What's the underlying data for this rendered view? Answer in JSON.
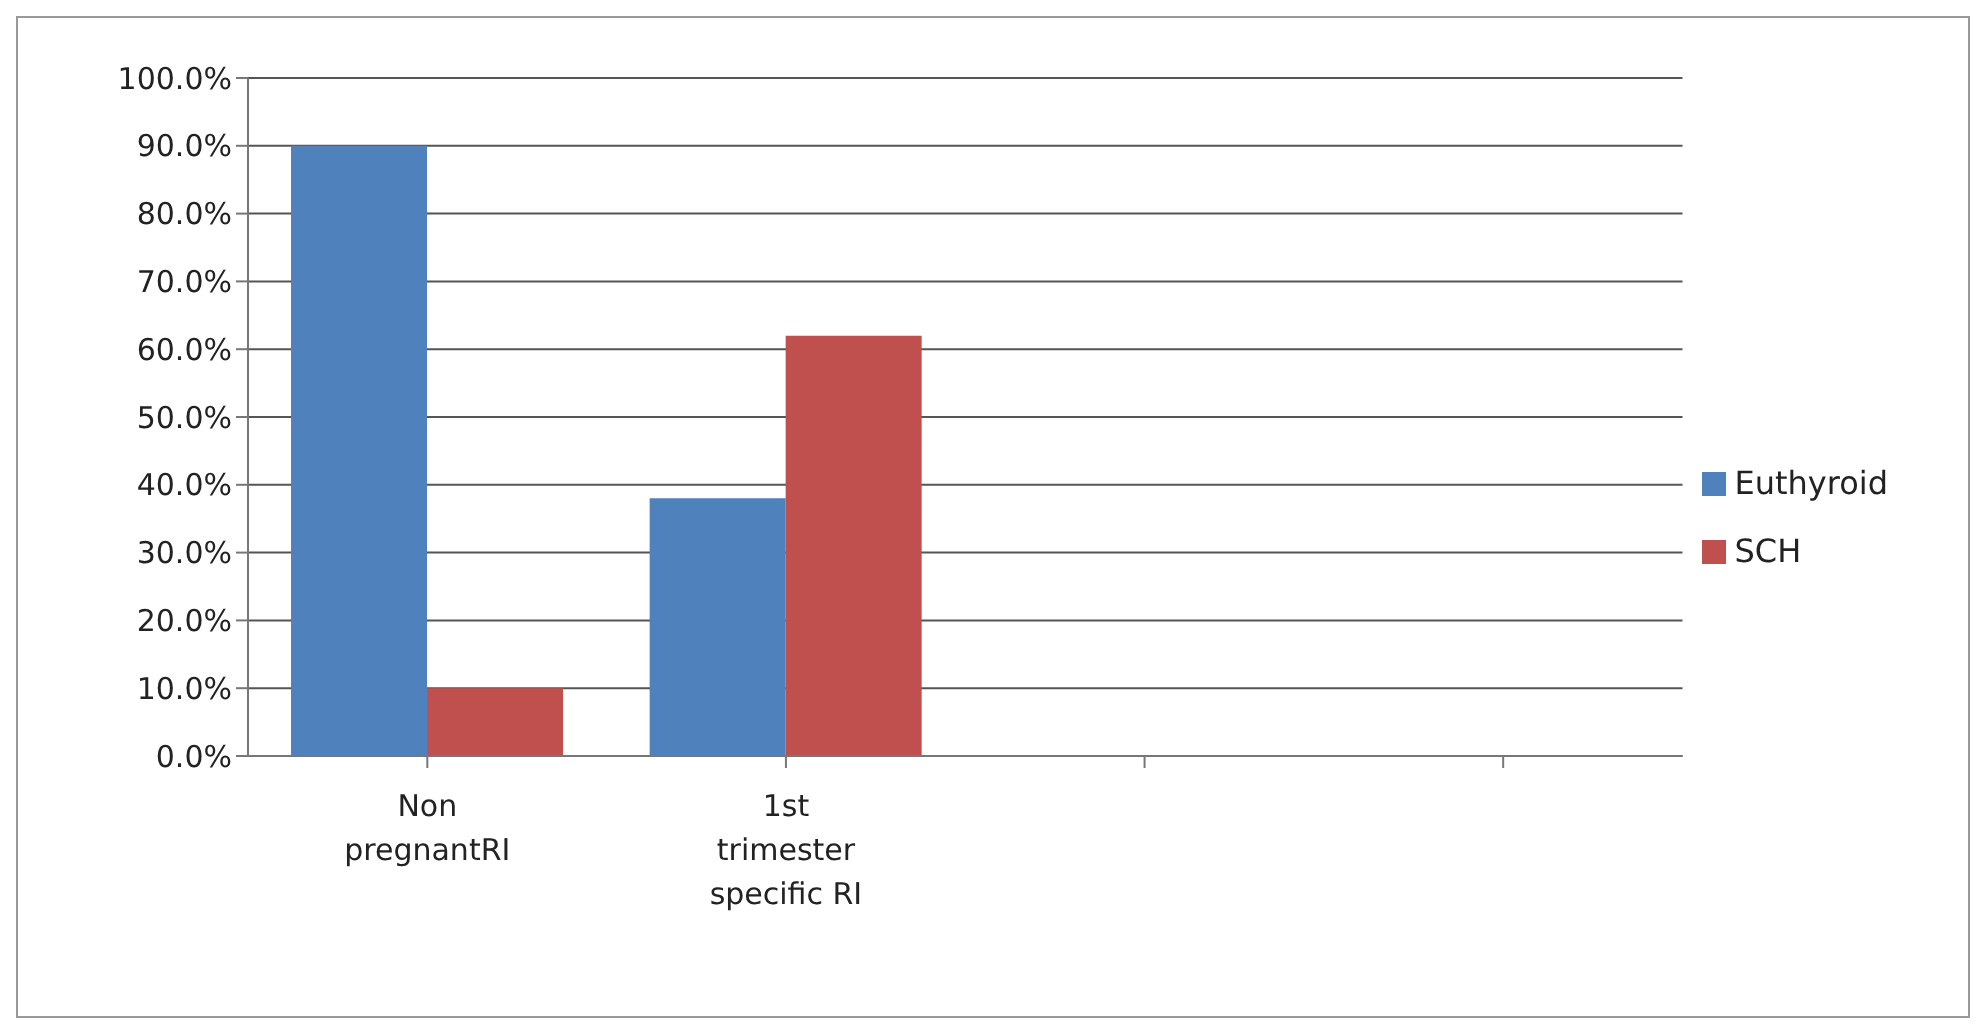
{
  "chart_data": {
    "type": "bar",
    "categories": [
      "Non pregnantRI",
      "1st trimester specific RI",
      null,
      null
    ],
    "series": [
      {
        "name": "Euthyroid",
        "color": "#4f81bd",
        "values": [
          90,
          38,
          null,
          null
        ]
      },
      {
        "name": "SCH",
        "color": "#c0504d",
        "values": [
          10,
          62,
          null,
          null
        ]
      }
    ],
    "ylim": [
      0,
      100
    ],
    "yticks": [
      {
        "value": 0,
        "label": "0.0%"
      },
      {
        "value": 10,
        "label": "10.0%"
      },
      {
        "value": 20,
        "label": "20.0%"
      },
      {
        "value": 30,
        "label": "30.0%"
      },
      {
        "value": 40,
        "label": "40.0%"
      },
      {
        "value": 50,
        "label": "50.0%"
      },
      {
        "value": 60,
        "label": "60.0%"
      },
      {
        "value": 70,
        "label": "70.0%"
      },
      {
        "value": 80,
        "label": "80.0%"
      },
      {
        "value": 90,
        "label": "90.0%"
      },
      {
        "value": 100,
        "label": "100.0%"
      }
    ],
    "grid": "y",
    "legend": "right"
  }
}
